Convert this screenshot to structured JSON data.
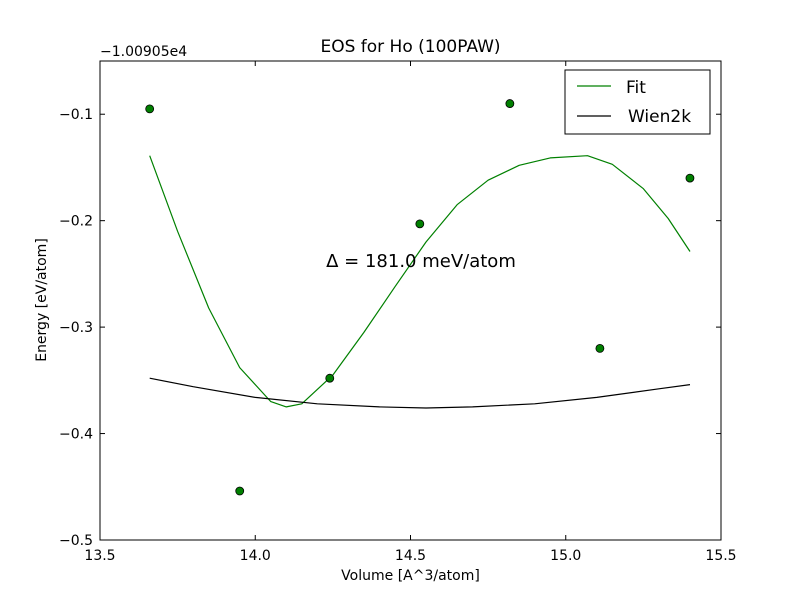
{
  "chart_data": {
    "type": "scatter",
    "title": "EOS for Ho (100PAW)",
    "xlabel": "Volume [A^3/atom]",
    "ylabel": "Energy [eV/atom]",
    "offset_label": "−1.00905e4",
    "annotation": "Δ = 181.0 meV/atom",
    "xlim": [
      13.5,
      15.5
    ],
    "ylim": [
      -0.5,
      -0.05
    ],
    "xticks": [
      13.5,
      14.0,
      14.5,
      15.0,
      15.5
    ],
    "xtick_labels": [
      "13.5",
      "14.0",
      "14.5",
      "15.0",
      "15.5"
    ],
    "yticks": [
      -0.5,
      -0.4,
      -0.3,
      -0.2,
      -0.1
    ],
    "ytick_labels": [
      "−0.5",
      "−0.4",
      "−0.3",
      "−0.2",
      "−0.1"
    ],
    "legend_position": "top-right",
    "points": {
      "color": "#007f00",
      "x": [
        13.66,
        13.95,
        14.24,
        14.53,
        14.82,
        15.11,
        15.4
      ],
      "y": [
        -0.095,
        -0.454,
        -0.348,
        -0.203,
        -0.09,
        -0.32,
        -0.16
      ]
    },
    "series": [
      {
        "name": "Fit",
        "color": "#008000",
        "x": [
          13.66,
          13.75,
          13.85,
          13.95,
          14.05,
          14.1,
          14.15,
          14.25,
          14.35,
          14.45,
          14.55,
          14.65,
          14.75,
          14.85,
          14.95,
          15.07,
          15.15,
          15.25,
          15.33,
          15.4
        ],
        "y": [
          -0.139,
          -0.21,
          -0.282,
          -0.338,
          -0.37,
          -0.375,
          -0.372,
          -0.345,
          -0.305,
          -0.262,
          -0.22,
          -0.185,
          -0.162,
          -0.148,
          -0.141,
          -0.139,
          -0.147,
          -0.17,
          -0.198,
          -0.229
        ]
      },
      {
        "name": "Wien2k",
        "color": "#000000",
        "x": [
          13.66,
          13.8,
          14.0,
          14.2,
          14.4,
          14.55,
          14.7,
          14.9,
          15.1,
          15.3,
          15.4
        ],
        "y": [
          -0.348,
          -0.356,
          -0.366,
          -0.372,
          -0.375,
          -0.376,
          -0.375,
          -0.372,
          -0.366,
          -0.358,
          -0.354
        ]
      }
    ]
  }
}
